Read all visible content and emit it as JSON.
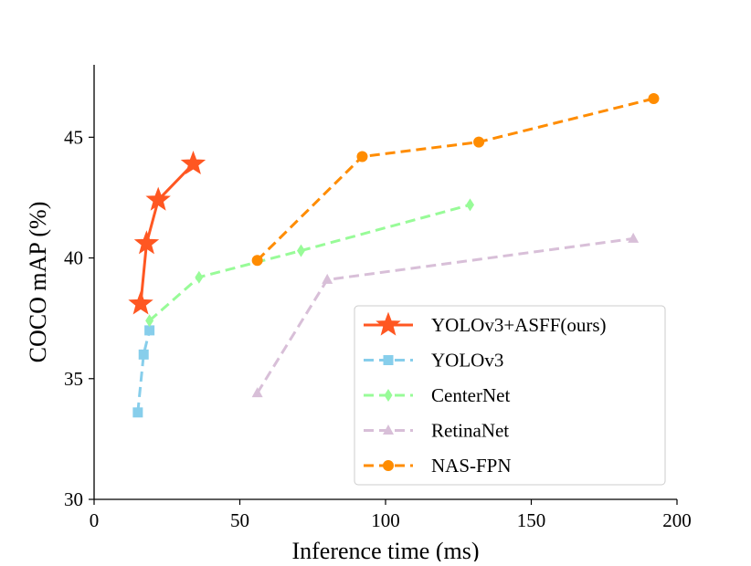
{
  "chart_data": {
    "type": "line",
    "title": "",
    "xlabel": "Inference time (ms)",
    "ylabel": "COCO mAP (%)",
    "xlim": [
      0,
      200
    ],
    "ylim": [
      30,
      48
    ],
    "xticks": [
      0,
      50,
      100,
      150,
      200
    ],
    "yticks": [
      30,
      35,
      40,
      45
    ],
    "grid": false,
    "legend_position": "bottom-right",
    "series": [
      {
        "name": "YOLOv3+ASFF(ours)",
        "color": "#ff5722",
        "marker": "star",
        "dash": "solid",
        "x": [
          16,
          18,
          22,
          34
        ],
        "y": [
          38.1,
          40.6,
          42.4,
          43.9
        ]
      },
      {
        "name": "YOLOv3",
        "color": "#87ceeb",
        "marker": "square",
        "dash": "dashed",
        "x": [
          15,
          17,
          19
        ],
        "y": [
          33.6,
          36.0,
          37.0
        ]
      },
      {
        "name": "CenterNet",
        "color": "#98fb98",
        "marker": "diamond",
        "dash": "dashed",
        "x": [
          19,
          36,
          71,
          129
        ],
        "y": [
          37.4,
          39.2,
          40.3,
          42.2
        ]
      },
      {
        "name": "RetinaNet",
        "color": "#d8bfd8",
        "marker": "triangle",
        "dash": "dashed",
        "x": [
          56,
          80,
          185
        ],
        "y": [
          34.4,
          39.1,
          40.8
        ]
      },
      {
        "name": "NAS-FPN",
        "color": "#ff8c00",
        "marker": "circle",
        "dash": "dashed",
        "x": [
          56,
          92,
          132,
          192
        ],
        "y": [
          39.9,
          44.2,
          44.8,
          46.6
        ]
      }
    ]
  }
}
